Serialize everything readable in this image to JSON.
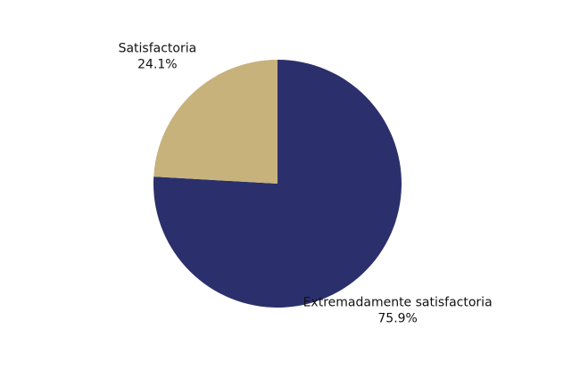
{
  "chart_data": {
    "type": "pie",
    "categories": [
      "Extremadamente satisfactoria",
      "Satisfactoria"
    ],
    "values": [
      75.9,
      24.1
    ],
    "value_labels": [
      "75.9%",
      "24.1%"
    ],
    "colors": [
      "#2b306c",
      "#c7b27c"
    ]
  }
}
